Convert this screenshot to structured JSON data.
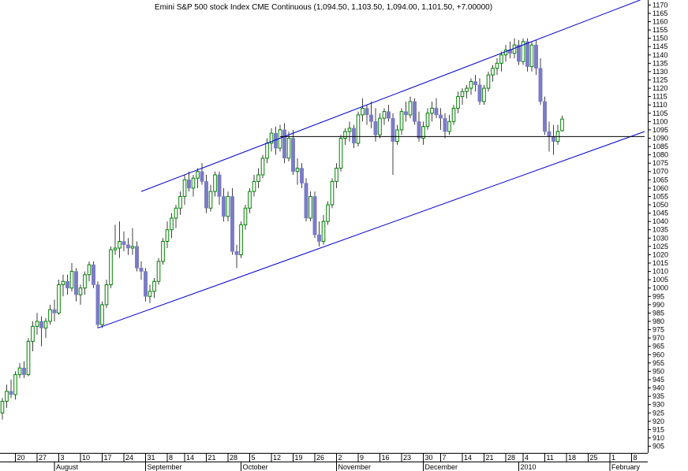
{
  "chart_data": {
    "type": "candlestick",
    "title": "Emini S&P 500 stock Index CME Continuous (1,094.50, 1,103.50, 1,094.00, 1,101.50, +7.00000)",
    "xlabel": "",
    "ylabel": "",
    "ylim": [
      901,
      1173
    ],
    "y_ticks": [
      905,
      910,
      915,
      920,
      925,
      930,
      935,
      940,
      945,
      950,
      955,
      960,
      965,
      970,
      975,
      980,
      985,
      990,
      995,
      1000,
      1005,
      1010,
      1015,
      1020,
      1025,
      1030,
      1035,
      1040,
      1045,
      1050,
      1055,
      1060,
      1065,
      1070,
      1075,
      1080,
      1085,
      1090,
      1095,
      1100,
      1105,
      1110,
      1115,
      1120,
      1125,
      1130,
      1135,
      1140,
      1145,
      1150,
      1155,
      1160,
      1165,
      1170
    ],
    "date_ticks": [
      {
        "label": "20",
        "index": 3
      },
      {
        "label": "27",
        "index": 8
      },
      {
        "label": "3",
        "index": 13
      },
      {
        "label": "10",
        "index": 18
      },
      {
        "label": "17",
        "index": 23
      },
      {
        "label": "24",
        "index": 28
      },
      {
        "label": "31",
        "index": 33
      },
      {
        "label": "8",
        "index": 38
      },
      {
        "label": "14",
        "index": 42
      },
      {
        "label": "21",
        "index": 47
      },
      {
        "label": "28",
        "index": 52
      },
      {
        "label": "5",
        "index": 57
      },
      {
        "label": "12",
        "index": 62
      },
      {
        "label": "19",
        "index": 67
      },
      {
        "label": "26",
        "index": 72
      },
      {
        "label": "2",
        "index": 77
      },
      {
        "label": "9",
        "index": 82
      },
      {
        "label": "16",
        "index": 87
      },
      {
        "label": "23",
        "index": 92
      },
      {
        "label": "30",
        "index": 97
      },
      {
        "label": "7",
        "index": 101
      },
      {
        "label": "14",
        "index": 106
      },
      {
        "label": "21",
        "index": 111
      },
      {
        "label": "28",
        "index": 116
      },
      {
        "label": "4",
        "index": 120
      },
      {
        "label": "11",
        "index": 125
      },
      {
        "label": "18",
        "index": 130
      },
      {
        "label": "25",
        "index": 135
      },
      {
        "label": "1",
        "index": 140
      },
      {
        "label": "8",
        "index": 145
      }
    ],
    "month_labels": [
      {
        "label": "August",
        "index": 12
      },
      {
        "label": "September",
        "index": 33
      },
      {
        "label": "October",
        "index": 55
      },
      {
        "label": "November",
        "index": 77
      },
      {
        "label": "December",
        "index": 97
      },
      {
        "label": "2010",
        "index": 119
      },
      {
        "label": "February",
        "index": 140
      }
    ],
    "colors": {
      "up": "#008000",
      "down": "#7b7bc6",
      "wick": "#404040",
      "channel": "#0000cc",
      "support": "#000000",
      "grid_axis": "#000000"
    },
    "channel_lines": [
      {
        "name": "upper",
        "p1": {
          "index": 32,
          "value": 1058
        },
        "p2": {
          "index": 147,
          "value": 1173
        }
      },
      {
        "name": "lower",
        "p1": {
          "index": 22,
          "value": 976
        },
        "p2": {
          "index": 148,
          "value": 1094
        }
      }
    ],
    "horizontal_lines": [
      {
        "value": 1091,
        "from_index": 64,
        "to_index": 148
      }
    ],
    "candles": [
      {
        "o": 925,
        "h": 934,
        "l": 921,
        "c": 932
      },
      {
        "o": 932,
        "h": 942,
        "l": 928,
        "c": 938
      },
      {
        "o": 938,
        "h": 945,
        "l": 934,
        "c": 936
      },
      {
        "o": 936,
        "h": 950,
        "l": 933,
        "c": 948
      },
      {
        "o": 948,
        "h": 955,
        "l": 946,
        "c": 952
      },
      {
        "o": 952,
        "h": 956,
        "l": 946,
        "c": 948
      },
      {
        "o": 948,
        "h": 970,
        "l": 947,
        "c": 968
      },
      {
        "o": 968,
        "h": 980,
        "l": 962,
        "c": 977
      },
      {
        "o": 977,
        "h": 985,
        "l": 972,
        "c": 980
      },
      {
        "o": 980,
        "h": 983,
        "l": 965,
        "c": 976
      },
      {
        "o": 976,
        "h": 982,
        "l": 970,
        "c": 980
      },
      {
        "o": 980,
        "h": 990,
        "l": 978,
        "c": 987
      },
      {
        "o": 987,
        "h": 993,
        "l": 980,
        "c": 985
      },
      {
        "o": 985,
        "h": 1005,
        "l": 984,
        "c": 1002
      },
      {
        "o": 1002,
        "h": 1008,
        "l": 995,
        "c": 1004
      },
      {
        "o": 1004,
        "h": 1008,
        "l": 996,
        "c": 1000
      },
      {
        "o": 1000,
        "h": 1015,
        "l": 998,
        "c": 1010
      },
      {
        "o": 1010,
        "h": 1012,
        "l": 992,
        "c": 996
      },
      {
        "o": 996,
        "h": 1002,
        "l": 990,
        "c": 1000
      },
      {
        "o": 1000,
        "h": 1010,
        "l": 996,
        "c": 1008
      },
      {
        "o": 1008,
        "h": 1016,
        "l": 1004,
        "c": 1014
      },
      {
        "o": 1014,
        "h": 1016,
        "l": 1000,
        "c": 1002
      },
      {
        "o": 1002,
        "h": 1004,
        "l": 976,
        "c": 978
      },
      {
        "o": 978,
        "h": 992,
        "l": 976,
        "c": 990
      },
      {
        "o": 990,
        "h": 1005,
        "l": 988,
        "c": 1002
      },
      {
        "o": 1002,
        "h": 1025,
        "l": 1000,
        "c": 1023
      },
      {
        "o": 1023,
        "h": 1038,
        "l": 1020,
        "c": 1024
      },
      {
        "o": 1024,
        "h": 1040,
        "l": 1018,
        "c": 1028
      },
      {
        "o": 1028,
        "h": 1034,
        "l": 1022,
        "c": 1026
      },
      {
        "o": 1026,
        "h": 1030,
        "l": 1020,
        "c": 1024
      },
      {
        "o": 1024,
        "h": 1036,
        "l": 1020,
        "c": 1025
      },
      {
        "o": 1025,
        "h": 1028,
        "l": 1010,
        "c": 1012
      },
      {
        "o": 1012,
        "h": 1016,
        "l": 1005,
        "c": 1010
      },
      {
        "o": 1010,
        "h": 1012,
        "l": 992,
        "c": 995
      },
      {
        "o": 995,
        "h": 1002,
        "l": 991,
        "c": 998
      },
      {
        "o": 998,
        "h": 1006,
        "l": 994,
        "c": 1004
      },
      {
        "o": 1004,
        "h": 1018,
        "l": 1002,
        "c": 1016
      },
      {
        "o": 1016,
        "h": 1030,
        "l": 1014,
        "c": 1028
      },
      {
        "o": 1028,
        "h": 1040,
        "l": 1024,
        "c": 1035
      },
      {
        "o": 1035,
        "h": 1045,
        "l": 1030,
        "c": 1042
      },
      {
        "o": 1042,
        "h": 1050,
        "l": 1036,
        "c": 1048
      },
      {
        "o": 1048,
        "h": 1058,
        "l": 1044,
        "c": 1055
      },
      {
        "o": 1055,
        "h": 1068,
        "l": 1050,
        "c": 1065
      },
      {
        "o": 1065,
        "h": 1070,
        "l": 1058,
        "c": 1060
      },
      {
        "o": 1060,
        "h": 1068,
        "l": 1055,
        "c": 1066
      },
      {
        "o": 1066,
        "h": 1072,
        "l": 1060,
        "c": 1070
      },
      {
        "o": 1070,
        "h": 1075,
        "l": 1062,
        "c": 1064
      },
      {
        "o": 1064,
        "h": 1068,
        "l": 1045,
        "c": 1048
      },
      {
        "o": 1048,
        "h": 1062,
        "l": 1046,
        "c": 1058
      },
      {
        "o": 1058,
        "h": 1070,
        "l": 1055,
        "c": 1068
      },
      {
        "o": 1068,
        "h": 1070,
        "l": 1050,
        "c": 1055
      },
      {
        "o": 1055,
        "h": 1060,
        "l": 1040,
        "c": 1043
      },
      {
        "o": 1043,
        "h": 1058,
        "l": 1040,
        "c": 1055
      },
      {
        "o": 1055,
        "h": 1060,
        "l": 1020,
        "c": 1022
      },
      {
        "o": 1022,
        "h": 1026,
        "l": 1012,
        "c": 1020
      },
      {
        "o": 1020,
        "h": 1040,
        "l": 1018,
        "c": 1038
      },
      {
        "o": 1038,
        "h": 1050,
        "l": 1035,
        "c": 1048
      },
      {
        "o": 1048,
        "h": 1060,
        "l": 1045,
        "c": 1058
      },
      {
        "o": 1058,
        "h": 1068,
        "l": 1055,
        "c": 1064
      },
      {
        "o": 1064,
        "h": 1072,
        "l": 1060,
        "c": 1068
      },
      {
        "o": 1068,
        "h": 1080,
        "l": 1066,
        "c": 1078
      },
      {
        "o": 1078,
        "h": 1090,
        "l": 1075,
        "c": 1087
      },
      {
        "o": 1087,
        "h": 1096,
        "l": 1082,
        "c": 1093
      },
      {
        "o": 1093,
        "h": 1097,
        "l": 1080,
        "c": 1084
      },
      {
        "o": 1084,
        "h": 1098,
        "l": 1082,
        "c": 1095
      },
      {
        "o": 1095,
        "h": 1099,
        "l": 1075,
        "c": 1078
      },
      {
        "o": 1078,
        "h": 1094,
        "l": 1076,
        "c": 1090
      },
      {
        "o": 1090,
        "h": 1095,
        "l": 1068,
        "c": 1070
      },
      {
        "o": 1070,
        "h": 1078,
        "l": 1062,
        "c": 1072
      },
      {
        "o": 1072,
        "h": 1075,
        "l": 1060,
        "c": 1063
      },
      {
        "o": 1063,
        "h": 1066,
        "l": 1040,
        "c": 1042
      },
      {
        "o": 1042,
        "h": 1058,
        "l": 1040,
        "c": 1055
      },
      {
        "o": 1055,
        "h": 1058,
        "l": 1030,
        "c": 1032
      },
      {
        "o": 1032,
        "h": 1040,
        "l": 1025,
        "c": 1028
      },
      {
        "o": 1028,
        "h": 1044,
        "l": 1026,
        "c": 1040
      },
      {
        "o": 1040,
        "h": 1052,
        "l": 1038,
        "c": 1050
      },
      {
        "o": 1050,
        "h": 1066,
        "l": 1048,
        "c": 1064
      },
      {
        "o": 1064,
        "h": 1075,
        "l": 1060,
        "c": 1072
      },
      {
        "o": 1072,
        "h": 1092,
        "l": 1070,
        "c": 1090
      },
      {
        "o": 1090,
        "h": 1096,
        "l": 1086,
        "c": 1094
      },
      {
        "o": 1094,
        "h": 1100,
        "l": 1088,
        "c": 1096
      },
      {
        "o": 1096,
        "h": 1098,
        "l": 1084,
        "c": 1087
      },
      {
        "o": 1087,
        "h": 1106,
        "l": 1085,
        "c": 1104
      },
      {
        "o": 1104,
        "h": 1114,
        "l": 1100,
        "c": 1108
      },
      {
        "o": 1108,
        "h": 1110,
        "l": 1098,
        "c": 1104
      },
      {
        "o": 1104,
        "h": 1112,
        "l": 1096,
        "c": 1100
      },
      {
        "o": 1100,
        "h": 1108,
        "l": 1088,
        "c": 1092
      },
      {
        "o": 1092,
        "h": 1105,
        "l": 1090,
        "c": 1102
      },
      {
        "o": 1102,
        "h": 1108,
        "l": 1098,
        "c": 1106
      },
      {
        "o": 1106,
        "h": 1110,
        "l": 1100,
        "c": 1102
      },
      {
        "o": 1102,
        "h": 1105,
        "l": 1068,
        "c": 1088
      },
      {
        "o": 1088,
        "h": 1098,
        "l": 1086,
        "c": 1095
      },
      {
        "o": 1095,
        "h": 1108,
        "l": 1092,
        "c": 1106
      },
      {
        "o": 1106,
        "h": 1112,
        "l": 1100,
        "c": 1104
      },
      {
        "o": 1104,
        "h": 1115,
        "l": 1102,
        "c": 1112
      },
      {
        "o": 1112,
        "h": 1114,
        "l": 1098,
        "c": 1100
      },
      {
        "o": 1100,
        "h": 1106,
        "l": 1088,
        "c": 1090
      },
      {
        "o": 1090,
        "h": 1100,
        "l": 1086,
        "c": 1097
      },
      {
        "o": 1097,
        "h": 1108,
        "l": 1095,
        "c": 1105
      },
      {
        "o": 1105,
        "h": 1112,
        "l": 1100,
        "c": 1108
      },
      {
        "o": 1108,
        "h": 1114,
        "l": 1102,
        "c": 1104
      },
      {
        "o": 1104,
        "h": 1108,
        "l": 1095,
        "c": 1102
      },
      {
        "o": 1102,
        "h": 1105,
        "l": 1090,
        "c": 1094
      },
      {
        "o": 1094,
        "h": 1104,
        "l": 1092,
        "c": 1100
      },
      {
        "o": 1100,
        "h": 1110,
        "l": 1098,
        "c": 1108
      },
      {
        "o": 1108,
        "h": 1118,
        "l": 1105,
        "c": 1115
      },
      {
        "o": 1115,
        "h": 1120,
        "l": 1110,
        "c": 1118
      },
      {
        "o": 1118,
        "h": 1122,
        "l": 1114,
        "c": 1120
      },
      {
        "o": 1120,
        "h": 1126,
        "l": 1116,
        "c": 1124
      },
      {
        "o": 1124,
        "h": 1128,
        "l": 1118,
        "c": 1122
      },
      {
        "o": 1122,
        "h": 1126,
        "l": 1110,
        "c": 1112
      },
      {
        "o": 1112,
        "h": 1122,
        "l": 1110,
        "c": 1120
      },
      {
        "o": 1120,
        "h": 1130,
        "l": 1118,
        "c": 1128
      },
      {
        "o": 1128,
        "h": 1134,
        "l": 1124,
        "c": 1132
      },
      {
        "o": 1132,
        "h": 1138,
        "l": 1128,
        "c": 1135
      },
      {
        "o": 1135,
        "h": 1142,
        "l": 1130,
        "c": 1140
      },
      {
        "o": 1140,
        "h": 1146,
        "l": 1136,
        "c": 1143
      },
      {
        "o": 1143,
        "h": 1148,
        "l": 1138,
        "c": 1141
      },
      {
        "o": 1141,
        "h": 1150,
        "l": 1138,
        "c": 1146
      },
      {
        "o": 1146,
        "h": 1149,
        "l": 1134,
        "c": 1136
      },
      {
        "o": 1136,
        "h": 1150,
        "l": 1134,
        "c": 1148
      },
      {
        "o": 1148,
        "h": 1150,
        "l": 1130,
        "c": 1133
      },
      {
        "o": 1133,
        "h": 1148,
        "l": 1130,
        "c": 1146
      },
      {
        "o": 1146,
        "h": 1149,
        "l": 1128,
        "c": 1132
      },
      {
        "o": 1132,
        "h": 1138,
        "l": 1110,
        "c": 1112
      },
      {
        "o": 1112,
        "h": 1115,
        "l": 1092,
        "c": 1094
      },
      {
        "o": 1094,
        "h": 1100,
        "l": 1082,
        "c": 1091
      },
      {
        "o": 1091,
        "h": 1098,
        "l": 1080,
        "c": 1088
      },
      {
        "o": 1088,
        "h": 1098,
        "l": 1086,
        "c": 1094
      },
      {
        "o": 1094.5,
        "h": 1103.5,
        "l": 1094,
        "c": 1101.5
      }
    ]
  }
}
